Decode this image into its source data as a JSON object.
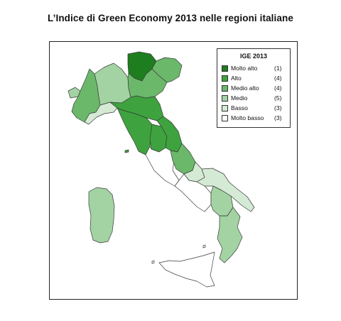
{
  "title": "L’Indice di Green Economy 2013 nelle regioni italiane",
  "legend": {
    "title": "IGE 2013",
    "items": [
      {
        "label": "Molto alto",
        "count": "(1)",
        "color": "#1e7d1e"
      },
      {
        "label": "Alto",
        "count": "(4)",
        "color": "#3ea33e"
      },
      {
        "label": "Medio alto",
        "count": "(4)",
        "color": "#6bb86b"
      },
      {
        "label": "Medio",
        "count": "(5)",
        "color": "#a3d3a3"
      },
      {
        "label": "Basso",
        "count": "(3)",
        "color": "#d4ead4"
      },
      {
        "label": "Molto basso",
        "count": "(3)",
        "color": "#ffffff"
      }
    ]
  }
}
